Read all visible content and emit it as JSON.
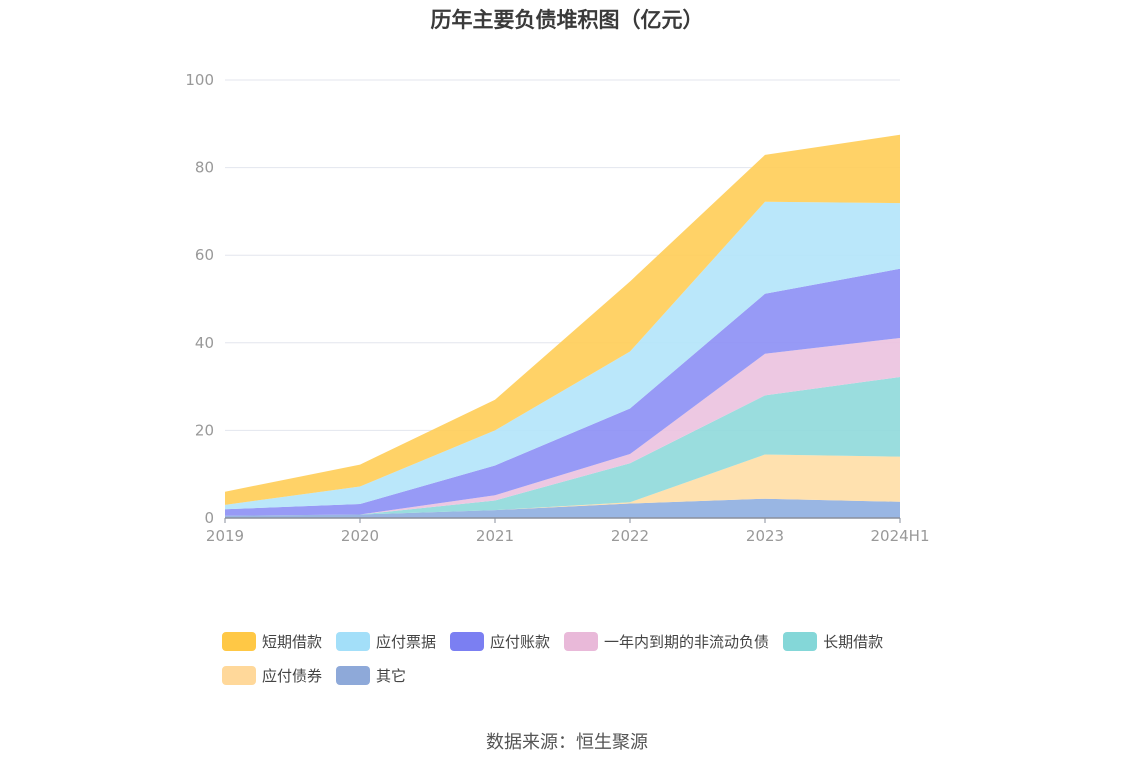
{
  "title": "历年主要负债堆积图（亿元）",
  "source": "数据来源：恒生聚源",
  "chart_data": {
    "type": "area",
    "stacked": true,
    "categories": [
      "2019",
      "2020",
      "2021",
      "2022",
      "2023",
      "2024H1"
    ],
    "ylim": [
      0,
      100
    ],
    "yticks": [
      "0",
      "20",
      "40",
      "60",
      "80",
      "100"
    ],
    "grid": true,
    "legend_position": "bottom",
    "series": [
      {
        "name": "其它",
        "color": "#8eaee0",
        "values": [
          0.5,
          0.8,
          1.8,
          3.3,
          4.4,
          3.7
        ]
      },
      {
        "name": "应付债券",
        "color": "#ffdea6",
        "values": [
          0,
          0,
          0,
          0.3,
          10.1,
          10.3
        ]
      },
      {
        "name": "长期借款",
        "color": "#8fd9da",
        "values": [
          0,
          0,
          2.2,
          8.9,
          13.5,
          18.2
        ]
      },
      {
        "name": "一年内到期的非流动负债",
        "color": "#ebc2df",
        "values": [
          0,
          0,
          1.2,
          2.1,
          9.5,
          8.9
        ]
      },
      {
        "name": "应付账款",
        "color": "#8c8ff5",
        "values": [
          1.5,
          2.4,
          6.8,
          10.4,
          13.7,
          15.8
        ]
      },
      {
        "name": "应付票据",
        "color": "#b3e4fa",
        "values": [
          1.0,
          4.0,
          8.0,
          13.0,
          21.0,
          15.0
        ]
      },
      {
        "name": "短期借款",
        "color": "#ffcd57",
        "values": [
          3.0,
          5.0,
          7.0,
          16.0,
          10.7,
          15.6
        ]
      }
    ],
    "legend": [
      {
        "name": "短期借款",
        "color": "#ffc845"
      },
      {
        "name": "应付票据",
        "color": "#a3dff9"
      },
      {
        "name": "应付账款",
        "color": "#7b7ff2"
      },
      {
        "name": "一年内到期的非流动负债",
        "color": "#e9b9d9"
      },
      {
        "name": "长期借款",
        "color": "#84d7d8"
      },
      {
        "name": "应付债券",
        "color": "#ffd89a"
      },
      {
        "name": "其它",
        "color": "#8ea9d9"
      }
    ]
  }
}
